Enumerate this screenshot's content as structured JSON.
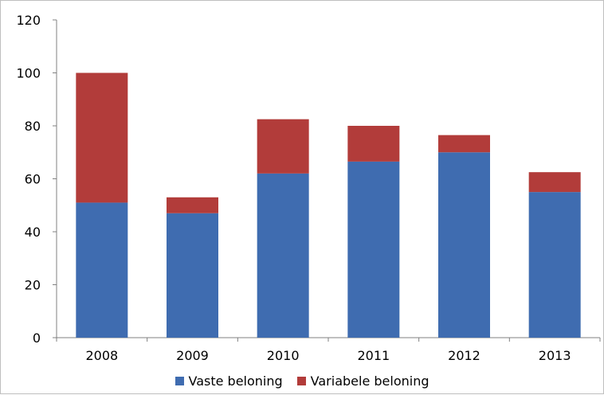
{
  "chart_data": {
    "type": "bar",
    "stacked": true,
    "categories": [
      "2008",
      "2009",
      "2010",
      "2011",
      "2012",
      "2013"
    ],
    "series": [
      {
        "name": "Vaste beloning",
        "color": "#3f6cb0",
        "values": [
          51,
          47,
          62,
          66.5,
          70,
          55
        ]
      },
      {
        "name": "Variabele beloning",
        "color": "#b23c3a",
        "values": [
          49,
          6,
          20.5,
          13.5,
          6.5,
          7.5
        ]
      }
    ],
    "ylim": [
      0,
      120
    ],
    "yticks": [
      "0",
      "20",
      "40",
      "60",
      "80",
      "100",
      "120"
    ],
    "grid": false,
    "legend_position": "bottom",
    "title": "",
    "xlabel": "",
    "ylabel": ""
  }
}
